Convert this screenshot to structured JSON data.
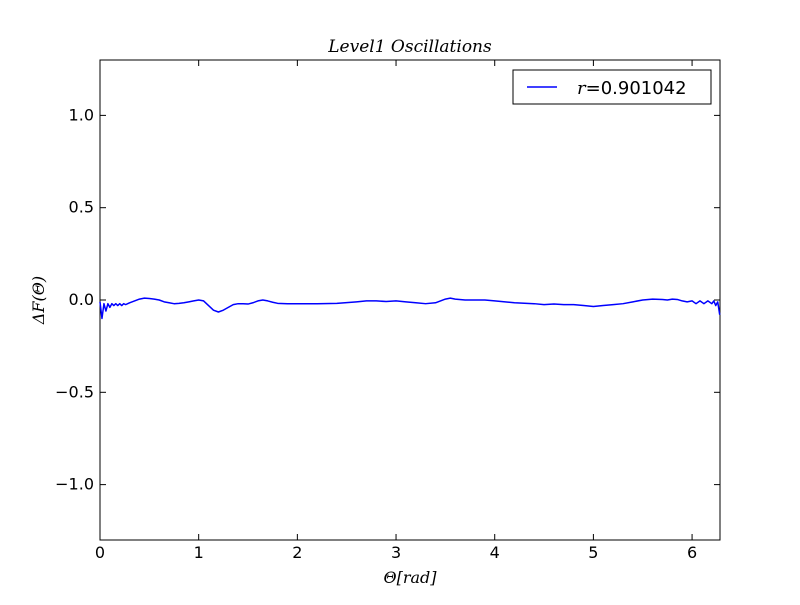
{
  "chart_data": {
    "type": "line",
    "title": "Level1 Oscillations",
    "xlabel": "Θ[rad]",
    "ylabel": "ΔF(Θ)",
    "xlim": [
      0,
      6.283
    ],
    "ylim": [
      -1.3,
      1.3
    ],
    "x_ticks": [
      0,
      1,
      2,
      3,
      4,
      5,
      6
    ],
    "x_tick_labels": [
      "0",
      "1",
      "2",
      "3",
      "4",
      "5",
      "6"
    ],
    "y_ticks": [
      1.0,
      0.5,
      0.0,
      -0.5,
      -1.0
    ],
    "y_tick_labels": [
      "1.0",
      "0.5",
      "0.0",
      "−0.5",
      "−1.0"
    ],
    "grid": false,
    "legend_position": "top-right",
    "series": [
      {
        "name": "r=0.901042",
        "legend_symbol": "r",
        "legend_value": "=0.901042",
        "color": "#0000ff",
        "x": [
          0.0,
          0.02,
          0.04,
          0.06,
          0.08,
          0.1,
          0.12,
          0.14,
          0.16,
          0.18,
          0.2,
          0.22,
          0.24,
          0.26,
          0.28,
          0.3,
          0.35,
          0.4,
          0.45,
          0.5,
          0.55,
          0.6,
          0.65,
          0.7,
          0.75,
          0.8,
          0.85,
          0.9,
          0.95,
          1.0,
          1.05,
          1.1,
          1.15,
          1.2,
          1.25,
          1.3,
          1.35,
          1.4,
          1.45,
          1.5,
          1.55,
          1.6,
          1.65,
          1.7,
          1.75,
          1.8,
          1.9,
          2.0,
          2.2,
          2.4,
          2.6,
          2.7,
          2.8,
          2.9,
          3.0,
          3.1,
          3.2,
          3.3,
          3.4,
          3.5,
          3.55,
          3.6,
          3.7,
          3.8,
          3.9,
          4.0,
          4.2,
          4.4,
          4.5,
          4.6,
          4.7,
          4.8,
          4.9,
          5.0,
          5.1,
          5.2,
          5.3,
          5.4,
          5.5,
          5.6,
          5.7,
          5.75,
          5.8,
          5.85,
          5.9,
          5.95,
          6.0,
          6.04,
          6.08,
          6.12,
          6.16,
          6.2,
          6.22,
          6.24,
          6.26,
          6.28
        ],
        "y": [
          -0.01,
          -0.1,
          -0.02,
          -0.06,
          -0.02,
          -0.04,
          -0.02,
          -0.03,
          -0.02,
          -0.03,
          -0.02,
          -0.03,
          -0.02,
          -0.025,
          -0.02,
          -0.015,
          -0.005,
          0.005,
          0.01,
          0.008,
          0.005,
          0.0,
          -0.01,
          -0.015,
          -0.02,
          -0.018,
          -0.015,
          -0.01,
          -0.005,
          0.0,
          -0.005,
          -0.03,
          -0.055,
          -0.065,
          -0.055,
          -0.04,
          -0.025,
          -0.02,
          -0.02,
          -0.022,
          -0.015,
          -0.005,
          0.0,
          -0.005,
          -0.012,
          -0.018,
          -0.02,
          -0.02,
          -0.02,
          -0.018,
          -0.01,
          -0.005,
          -0.005,
          -0.008,
          -0.005,
          -0.01,
          -0.015,
          -0.02,
          -0.015,
          0.005,
          0.01,
          0.005,
          0.0,
          0.0,
          0.0,
          -0.005,
          -0.015,
          -0.02,
          -0.025,
          -0.022,
          -0.025,
          -0.025,
          -0.03,
          -0.035,
          -0.03,
          -0.025,
          -0.02,
          -0.01,
          0.0,
          0.005,
          0.003,
          0.0,
          0.005,
          0.003,
          -0.005,
          -0.01,
          -0.005,
          -0.02,
          -0.005,
          -0.02,
          -0.005,
          -0.02,
          -0.005,
          -0.03,
          -0.01,
          -0.08
        ]
      }
    ]
  }
}
